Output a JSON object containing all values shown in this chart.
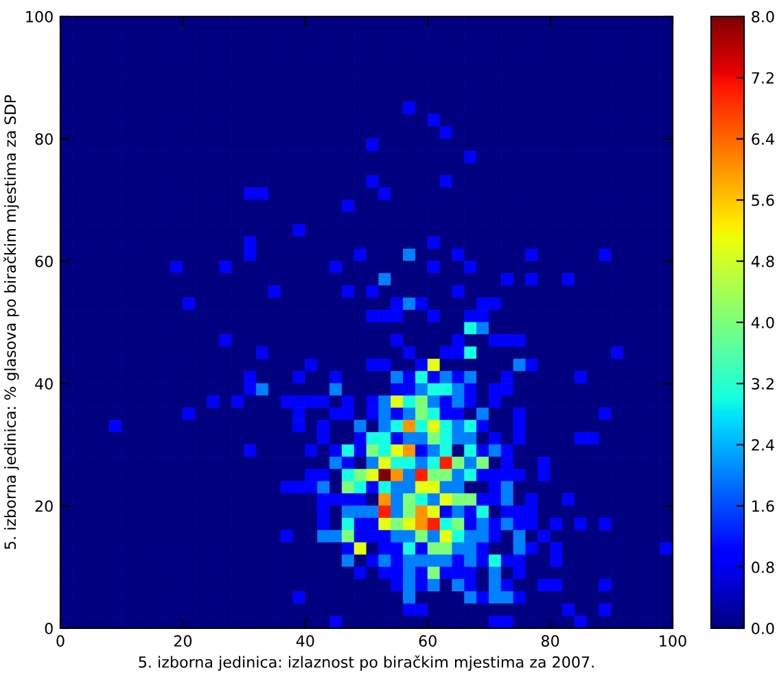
{
  "chart_data": {
    "type": "heatmap",
    "xlabel": "5. izborna jedinica: izlaznost po biračkim mjestima za 2007.",
    "ylabel": "5. izborna jedinica: % glasova po biračkim mjestima za SDP",
    "x": [
      1,
      3,
      5,
      7,
      9,
      11,
      13,
      15,
      17,
      19,
      21,
      23,
      25,
      27,
      29,
      31,
      33,
      35,
      37,
      39,
      41,
      43,
      45,
      47,
      49,
      51,
      53,
      55,
      57,
      59,
      61,
      63,
      65,
      67,
      69,
      71,
      73,
      75,
      77,
      79,
      81,
      83,
      85,
      87,
      89,
      91,
      93,
      95,
      97,
      99
    ],
    "y": [
      99,
      97,
      95,
      93,
      91,
      89,
      87,
      85,
      83,
      81,
      79,
      77,
      75,
      73,
      71,
      69,
      67,
      65,
      63,
      61,
      59,
      57,
      55,
      53,
      51,
      49,
      47,
      45,
      43,
      41,
      39,
      37,
      35,
      33,
      31,
      29,
      27,
      25,
      23,
      21,
      19,
      17,
      15,
      13,
      11,
      9,
      7,
      5,
      3,
      1
    ],
    "cells": [
      [
        0,
        0,
        0,
        0,
        0,
        0,
        0,
        0,
        0,
        0,
        0,
        0,
        0,
        0,
        0,
        0,
        0,
        0,
        0,
        0,
        0,
        0,
        0,
        0,
        0,
        0,
        0,
        0,
        0,
        0,
        0,
        0,
        0,
        0,
        0,
        0,
        0,
        0,
        0,
        0,
        0,
        0,
        0,
        0,
        0,
        0,
        0,
        0,
        0,
        0
      ],
      [
        0,
        0,
        0,
        0,
        0,
        0,
        0,
        0,
        0,
        0,
        0,
        0,
        0,
        0,
        0,
        0,
        0,
        0,
        0,
        0,
        0,
        0,
        0,
        0,
        0,
        0,
        0,
        0,
        0,
        0,
        0,
        0,
        0,
        0,
        0,
        0,
        0,
        0,
        0,
        0,
        0,
        0,
        0,
        0,
        0,
        0,
        0,
        0,
        0,
        0
      ],
      [
        0,
        0,
        0,
        0,
        0,
        0,
        0,
        0,
        0,
        0,
        0,
        0,
        0,
        0,
        0,
        0,
        0,
        0,
        0,
        0,
        0,
        0,
        0,
        0,
        0,
        0,
        0,
        0,
        0,
        0,
        0,
        0,
        0,
        0,
        0,
        0,
        0,
        0,
        0,
        0,
        0,
        0,
        0,
        0,
        0,
        0,
        0,
        0,
        0,
        0
      ],
      [
        0,
        0,
        0,
        0,
        0,
        0,
        0,
        0,
        0,
        0,
        0,
        0,
        0,
        0,
        0,
        0,
        0,
        0,
        0,
        0,
        0,
        0,
        0,
        0,
        0,
        0,
        0,
        0,
        0,
        0,
        0,
        0,
        0,
        0,
        0,
        0,
        0,
        0,
        0,
        0,
        0,
        0,
        0,
        0,
        0,
        0,
        0,
        0,
        0,
        0
      ],
      [
        0,
        0,
        0,
        0,
        0,
        0,
        0,
        0,
        0,
        0,
        0,
        0,
        0,
        0,
        0,
        0,
        0,
        0,
        0,
        0,
        0,
        0,
        0,
        0,
        0,
        0,
        0,
        0,
        0,
        0,
        0,
        0,
        0,
        0,
        0,
        0,
        0,
        0,
        0,
        0,
        0,
        0,
        0,
        0,
        0,
        0,
        0,
        0,
        0,
        0
      ],
      [
        0,
        0,
        0,
        0,
        0,
        0,
        0,
        0,
        0,
        0,
        0,
        0,
        0,
        0,
        0,
        0,
        0,
        0,
        0,
        0,
        0,
        0,
        0,
        0,
        0,
        0,
        0,
        0,
        0,
        0,
        0,
        0,
        0,
        0,
        0,
        0,
        0,
        0,
        0,
        0,
        0,
        0,
        0,
        0,
        0,
        0,
        0,
        0,
        0,
        0
      ],
      [
        0,
        0,
        0,
        0,
        0,
        0,
        0,
        0,
        0,
        0,
        0,
        0,
        0,
        0,
        0,
        0,
        0,
        0,
        0,
        0,
        0,
        0,
        0,
        0,
        0,
        0,
        0,
        0,
        0,
        0,
        0,
        0,
        0,
        0,
        0,
        0,
        0,
        0,
        0,
        0,
        0,
        0,
        0,
        0,
        0,
        0,
        0,
        0,
        0,
        0
      ],
      [
        0,
        0,
        0,
        0,
        0,
        0,
        0,
        0,
        0,
        0,
        0,
        0,
        0,
        0,
        0,
        0,
        0,
        0,
        0,
        0,
        0,
        0,
        0,
        0,
        0,
        0,
        0,
        0,
        1,
        0,
        0,
        0,
        0,
        0,
        0,
        0,
        0,
        0,
        0,
        0,
        0,
        0,
        0,
        0,
        0,
        0,
        0,
        0,
        0,
        0
      ],
      [
        0,
        0,
        0,
        0,
        0,
        0,
        0,
        0,
        0,
        0,
        0,
        0,
        0,
        0,
        0,
        0,
        0,
        0,
        0,
        0,
        0,
        0,
        0,
        0,
        0,
        0,
        0,
        0,
        0,
        0,
        1,
        0,
        0,
        0,
        0,
        0,
        0,
        0,
        0,
        0,
        0,
        0,
        0,
        0,
        0,
        0,
        0,
        0,
        0,
        0
      ],
      [
        0,
        0,
        0,
        0,
        0,
        0,
        0,
        0,
        0,
        0,
        0,
        0,
        0,
        0,
        0,
        0,
        0,
        0,
        0,
        0,
        0,
        0,
        0,
        0,
        0,
        0,
        0,
        0,
        0,
        0,
        0,
        1,
        0,
        0,
        0,
        0,
        0,
        0,
        0,
        0,
        0,
        0,
        0,
        0,
        0,
        0,
        0,
        0,
        0,
        0
      ],
      [
        0,
        0,
        0,
        0,
        0,
        0,
        0,
        0,
        0,
        0,
        0,
        0,
        0,
        0,
        0,
        0,
        0,
        0,
        0,
        0,
        0,
        0,
        0,
        0,
        0,
        1,
        0,
        0,
        0,
        0,
        0,
        0,
        0,
        0,
        0,
        0,
        0,
        0,
        0,
        0,
        0,
        0,
        0,
        0,
        0,
        0,
        0,
        0,
        0,
        0
      ],
      [
        0,
        0,
        0,
        0,
        0,
        0,
        0,
        0,
        0,
        0,
        0,
        0,
        0,
        0,
        0,
        0,
        0,
        0,
        0,
        0,
        0,
        0,
        0,
        0,
        0,
        0,
        0,
        0,
        0,
        0,
        0,
        0,
        0,
        1,
        0,
        0,
        0,
        0,
        0,
        0,
        0,
        0,
        0,
        0,
        0,
        0,
        0,
        0,
        0,
        0
      ],
      [
        0,
        0,
        0,
        0,
        0,
        0,
        0,
        0,
        0,
        0,
        0,
        0,
        0,
        0,
        0,
        0,
        0,
        0,
        0,
        0,
        0,
        0,
        0,
        0,
        0,
        0,
        0,
        0,
        0,
        0,
        0,
        0,
        0,
        0,
        0,
        0,
        0,
        0,
        0,
        0,
        0,
        0,
        0,
        0,
        0,
        0,
        0,
        0,
        0,
        0
      ],
      [
        0,
        0,
        0,
        0,
        0,
        0,
        0,
        0,
        0,
        0,
        0,
        0,
        0,
        0,
        0,
        0,
        0,
        0,
        0,
        0,
        0,
        0,
        0,
        0,
        0,
        1,
        0,
        0,
        0,
        0,
        0,
        1,
        0,
        0,
        0,
        0,
        0,
        0,
        0,
        0,
        0,
        0,
        0,
        0,
        0,
        0,
        0,
        0,
        0,
        0
      ],
      [
        0,
        0,
        0,
        0,
        0,
        0,
        0,
        0,
        0,
        0,
        0,
        0,
        0,
        0,
        0,
        1,
        1,
        0,
        0,
        0,
        0,
        0,
        0,
        0,
        0,
        0,
        1,
        0,
        0,
        0,
        0,
        0,
        0,
        0,
        0,
        0,
        0,
        0,
        0,
        0,
        0,
        0,
        0,
        0,
        0,
        0,
        0,
        0,
        0,
        0
      ],
      [
        0,
        0,
        0,
        0,
        0,
        0,
        0,
        0,
        0,
        0,
        0,
        0,
        0,
        0,
        0,
        0,
        0,
        0,
        0,
        0,
        0,
        0,
        0,
        1,
        0,
        0,
        0,
        0,
        0,
        0,
        0,
        0,
        0,
        0,
        0,
        0,
        0,
        0,
        0,
        0,
        0,
        0,
        0,
        0,
        0,
        0,
        0,
        0,
        0,
        0
      ],
      [
        0,
        0,
        0,
        0,
        0,
        0,
        0,
        0,
        0,
        0,
        0,
        0,
        0,
        0,
        0,
        0,
        0,
        0,
        0,
        0,
        0,
        0,
        0,
        0,
        0,
        0,
        0,
        0,
        0,
        0,
        0,
        0,
        0,
        0,
        0,
        0,
        0,
        0,
        0,
        0,
        0,
        0,
        0,
        0,
        0,
        0,
        0,
        0,
        0,
        0
      ],
      [
        0,
        0,
        0,
        0,
        0,
        0,
        0,
        0,
        0,
        0,
        0,
        0,
        0,
        0,
        0,
        0,
        0,
        0,
        0,
        1,
        0,
        0,
        0,
        0,
        0,
        0,
        0,
        0,
        0,
        0,
        0,
        0,
        0,
        0,
        0,
        0,
        0,
        0,
        0,
        0,
        0,
        0,
        0,
        0,
        0,
        0,
        0,
        0,
        0,
        0
      ],
      [
        0,
        0,
        0,
        0,
        0,
        0,
        0,
        0,
        0,
        0,
        0,
        0,
        0,
        0,
        0,
        1,
        0,
        0,
        0,
        0,
        0,
        0,
        0,
        0,
        0,
        0,
        0,
        0,
        0,
        0,
        1,
        0,
        0,
        0,
        0,
        0,
        0,
        0,
        0,
        0,
        0,
        0,
        0,
        0,
        0,
        0,
        0,
        0,
        0,
        0
      ],
      [
        0,
        0,
        0,
        0,
        0,
        0,
        0,
        0,
        0,
        0,
        0,
        0,
        0,
        0,
        0,
        1,
        0,
        0,
        0,
        0,
        0,
        0,
        0,
        0,
        1,
        0,
        0,
        0,
        2,
        0,
        0,
        0,
        1,
        0,
        0,
        0,
        0,
        0,
        1,
        0,
        0,
        0,
        0,
        0,
        1,
        0,
        0,
        0,
        0,
        0
      ],
      [
        0,
        0,
        0,
        0,
        0,
        0,
        0,
        0,
        0,
        1,
        0,
        0,
        0,
        1,
        0,
        0,
        0,
        0,
        0,
        0,
        0,
        0,
        1,
        0,
        0,
        0,
        0,
        0,
        0,
        0,
        1,
        0,
        0,
        1,
        0,
        0,
        0,
        0,
        0,
        0,
        0,
        0,
        0,
        0,
        0,
        0,
        0,
        0,
        0,
        0
      ],
      [
        0,
        0,
        0,
        0,
        0,
        0,
        0,
        0,
        0,
        0,
        0,
        0,
        0,
        0,
        0,
        0,
        0,
        0,
        0,
        0,
        0,
        0,
        0,
        0,
        0,
        0,
        2,
        0,
        0,
        0,
        0,
        0,
        0,
        0,
        0,
        0,
        1,
        0,
        1,
        0,
        0,
        1,
        0,
        0,
        0,
        0,
        0,
        0,
        0,
        0
      ],
      [
        0,
        0,
        0,
        0,
        0,
        0,
        0,
        0,
        0,
        0,
        0,
        0,
        0,
        0,
        0,
        0,
        0,
        1,
        0,
        0,
        0,
        0,
        0,
        1,
        0,
        1,
        0,
        0,
        0,
        0,
        0,
        0,
        1,
        0,
        0,
        0,
        0,
        0,
        0,
        0,
        0,
        0,
        0,
        0,
        0,
        0,
        0,
        0,
        0,
        0
      ],
      [
        0,
        0,
        0,
        0,
        0,
        0,
        0,
        0,
        0,
        0,
        1,
        0,
        0,
        0,
        0,
        0,
        0,
        0,
        0,
        0,
        0,
        0,
        0,
        0,
        0,
        0,
        0,
        1,
        2,
        1,
        0,
        0,
        0,
        0,
        1,
        1,
        0,
        0,
        0,
        0,
        0,
        0,
        0,
        0,
        0,
        0,
        0,
        0,
        0,
        0
      ],
      [
        0,
        0,
        0,
        0,
        0,
        0,
        0,
        0,
        0,
        0,
        0,
        0,
        0,
        0,
        0,
        0,
        0,
        0,
        0,
        0,
        0,
        0,
        0,
        0,
        0,
        1,
        1,
        1,
        0,
        0,
        1,
        0,
        0,
        1,
        1,
        0,
        0,
        0,
        0,
        0,
        0,
        0,
        0,
        0,
        0,
        0,
        0,
        0,
        0,
        0
      ],
      [
        0,
        0,
        0,
        0,
        0,
        0,
        0,
        0,
        0,
        0,
        0,
        0,
        0,
        0,
        0,
        0,
        0,
        0,
        0,
        0,
        0,
        0,
        0,
        0,
        0,
        0,
        0,
        0,
        0,
        0,
        0,
        0,
        0,
        3,
        2,
        0,
        0,
        0,
        0,
        0,
        0,
        0,
        0,
        0,
        0,
        0,
        0,
        0,
        0,
        0
      ],
      [
        0,
        0,
        0,
        0,
        0,
        0,
        0,
        0,
        0,
        0,
        0,
        0,
        0,
        1,
        0,
        0,
        0,
        0,
        0,
        0,
        0,
        0,
        0,
        0,
        0,
        0,
        0,
        1,
        0,
        0,
        0,
        0,
        1,
        0,
        0,
        1,
        1,
        1,
        0,
        0,
        0,
        0,
        0,
        0,
        0,
        0,
        0,
        0,
        0,
        0
      ],
      [
        0,
        0,
        0,
        0,
        0,
        0,
        0,
        0,
        0,
        0,
        0,
        0,
        0,
        0,
        0,
        0,
        1,
        0,
        0,
        0,
        0,
        0,
        0,
        0,
        0,
        0,
        0,
        0,
        1,
        0,
        0,
        1,
        1,
        3,
        0,
        0,
        0,
        0,
        0,
        0,
        0,
        0,
        0,
        0,
        0,
        1,
        0,
        0,
        0,
        0
      ],
      [
        0,
        0,
        0,
        0,
        0,
        0,
        0,
        0,
        0,
        0,
        0,
        0,
        0,
        0,
        0,
        0,
        0,
        0,
        0,
        0,
        1,
        0,
        0,
        0,
        0,
        1,
        1,
        0,
        0,
        1,
        5,
        0,
        0,
        0,
        0,
        0,
        0,
        2,
        1,
        0,
        0,
        0,
        0,
        0,
        0,
        0,
        0,
        0,
        0,
        0
      ],
      [
        0,
        0,
        0,
        0,
        0,
        0,
        0,
        0,
        0,
        0,
        0,
        0,
        0,
        0,
        0,
        1,
        0,
        0,
        0,
        1,
        0,
        0,
        1,
        0,
        0,
        0,
        0,
        2,
        1,
        3,
        1,
        2,
        1,
        2,
        0,
        0,
        1,
        0,
        0,
        0,
        0,
        0,
        1,
        0,
        0,
        0,
        0,
        0,
        0,
        0
      ],
      [
        0,
        0,
        0,
        0,
        0,
        0,
        0,
        0,
        0,
        0,
        0,
        0,
        0,
        0,
        0,
        1,
        2,
        0,
        0,
        0,
        0,
        0,
        2,
        0,
        0,
        0,
        0,
        1,
        1,
        2,
        3,
        3,
        2,
        1,
        0,
        1,
        1,
        0,
        0,
        0,
        0,
        0,
        0,
        0,
        0,
        0,
        0,
        0,
        0,
        0
      ],
      [
        0,
        0,
        0,
        0,
        0,
        0,
        0,
        0,
        0,
        0,
        0,
        0,
        1,
        0,
        1,
        0,
        0,
        0,
        1,
        1,
        1,
        1,
        0,
        1,
        0,
        1,
        2,
        5,
        3,
        4,
        2,
        1,
        2,
        1,
        0,
        1,
        0,
        0,
        0,
        0,
        0,
        0,
        0,
        0,
        0,
        0,
        0,
        0,
        0,
        0
      ],
      [
        0,
        0,
        0,
        0,
        0,
        0,
        0,
        0,
        0,
        0,
        1,
        0,
        0,
        0,
        0,
        0,
        0,
        0,
        0,
        1,
        0,
        0,
        1,
        1,
        0,
        1,
        2,
        1,
        2,
        4,
        3,
        1,
        1,
        0,
        2,
        0,
        0,
        1,
        0,
        0,
        0,
        0,
        0,
        0,
        1,
        0,
        0,
        0,
        0,
        0
      ],
      [
        0,
        0,
        0,
        0,
        1,
        0,
        0,
        0,
        0,
        0,
        0,
        0,
        0,
        0,
        0,
        0,
        0,
        0,
        0,
        1,
        0,
        1,
        0,
        0,
        2,
        0,
        2,
        3,
        6,
        3,
        5,
        3,
        2,
        3,
        1,
        0,
        0,
        1,
        0,
        0,
        0,
        0,
        0,
        0,
        0,
        0,
        0,
        0,
        0,
        0
      ],
      [
        0,
        0,
        0,
        0,
        0,
        0,
        0,
        0,
        0,
        0,
        0,
        0,
        0,
        0,
        0,
        0,
        0,
        0,
        0,
        0,
        0,
        1,
        0,
        0,
        1,
        3,
        3,
        1,
        2,
        2,
        4,
        3,
        2,
        2,
        0,
        1,
        0,
        1,
        0,
        0,
        0,
        0,
        1,
        1,
        0,
        0,
        0,
        0,
        0,
        0
      ],
      [
        0,
        0,
        0,
        0,
        0,
        0,
        0,
        0,
        0,
        0,
        0,
        0,
        0,
        0,
        0,
        1,
        0,
        0,
        0,
        0,
        1,
        0,
        1,
        3,
        1,
        4,
        3,
        5,
        6,
        1,
        2,
        3,
        0,
        3,
        1,
        2,
        1,
        0,
        0,
        0,
        0,
        0,
        0,
        0,
        0,
        0,
        0,
        0,
        0,
        0
      ],
      [
        0,
        0,
        0,
        0,
        0,
        0,
        0,
        0,
        0,
        0,
        0,
        0,
        0,
        0,
        0,
        0,
        0,
        0,
        0,
        0,
        0,
        0,
        2,
        1,
        0,
        2,
        5,
        3,
        3,
        2,
        3,
        7,
        4,
        2,
        4,
        0,
        1,
        0,
        0,
        1,
        0,
        0,
        0,
        0,
        0,
        0,
        0,
        0,
        0,
        0
      ],
      [
        0,
        0,
        0,
        0,
        0,
        0,
        0,
        0,
        0,
        0,
        0,
        0,
        0,
        0,
        0,
        0,
        0,
        0,
        0,
        0,
        1,
        1,
        0,
        3,
        4,
        5,
        8,
        6,
        2,
        7,
        4,
        4,
        2,
        3,
        1,
        1,
        1,
        1,
        0,
        1,
        0,
        0,
        0,
        0,
        0,
        0,
        0,
        0,
        0,
        0
      ],
      [
        0,
        0,
        0,
        0,
        0,
        0,
        0,
        0,
        0,
        0,
        0,
        0,
        0,
        0,
        0,
        0,
        0,
        0,
        1,
        1,
        1,
        2,
        0,
        4,
        3,
        1,
        3,
        2,
        2,
        5,
        5,
        2,
        2,
        0,
        0,
        1,
        2,
        0,
        0,
        0,
        0,
        0,
        0,
        0,
        0,
        0,
        0,
        0,
        0,
        0
      ],
      [
        0,
        0,
        0,
        0,
        0,
        0,
        0,
        0,
        0,
        0,
        0,
        0,
        0,
        0,
        0,
        0,
        0,
        0,
        0,
        0,
        0,
        1,
        1,
        1,
        1,
        0,
        6,
        2,
        4,
        3,
        2,
        5,
        4,
        4,
        1,
        1,
        2,
        0,
        1,
        0,
        0,
        1,
        0,
        0,
        0,
        0,
        0,
        0,
        0,
        0
      ],
      [
        0,
        0,
        0,
        0,
        0,
        0,
        0,
        0,
        0,
        0,
        0,
        0,
        0,
        0,
        0,
        0,
        0,
        0,
        0,
        0,
        0,
        1,
        0,
        2,
        2,
        2,
        7,
        2,
        4,
        6,
        5,
        1,
        2,
        1,
        3,
        0,
        1,
        1,
        1,
        0,
        0,
        0,
        0,
        0,
        0,
        0,
        0,
        0,
        0,
        0
      ],
      [
        0,
        0,
        0,
        0,
        0,
        0,
        0,
        0,
        0,
        0,
        0,
        0,
        0,
        0,
        0,
        0,
        0,
        0,
        0,
        0,
        0,
        1,
        0,
        3,
        1,
        1,
        5,
        4,
        5,
        6,
        7,
        3,
        4,
        1,
        2,
        1,
        2,
        1,
        1,
        0,
        1,
        0,
        1,
        0,
        1,
        0,
        0,
        0,
        0,
        0
      ],
      [
        0,
        0,
        0,
        0,
        0,
        0,
        0,
        0,
        0,
        0,
        0,
        0,
        0,
        0,
        0,
        0,
        0,
        0,
        1,
        0,
        0,
        2,
        2,
        4,
        1,
        1,
        1,
        2,
        2,
        4,
        2,
        5,
        3,
        2,
        2,
        1,
        0,
        2,
        0,
        1,
        0,
        0,
        0,
        0,
        0,
        0,
        0,
        0,
        0,
        0
      ],
      [
        0,
        0,
        0,
        0,
        0,
        0,
        0,
        0,
        0,
        0,
        0,
        0,
        0,
        0,
        0,
        0,
        0,
        0,
        0,
        0,
        0,
        0,
        0,
        1,
        5,
        0,
        1,
        1,
        3,
        1,
        4,
        4,
        2,
        2,
        1,
        0,
        0,
        2,
        1,
        0,
        1,
        0,
        0,
        0,
        0,
        0,
        0,
        0,
        0,
        1
      ],
      [
        0,
        0,
        0,
        0,
        0,
        0,
        0,
        0,
        0,
        0,
        0,
        0,
        0,
        0,
        0,
        0,
        0,
        0,
        0,
        0,
        0,
        0,
        0,
        2,
        0,
        1,
        2,
        1,
        2,
        2,
        2,
        2,
        1,
        2,
        1,
        3,
        1,
        1,
        0,
        0,
        1,
        0,
        0,
        0,
        0,
        0,
        0,
        0,
        0,
        0
      ],
      [
        0,
        0,
        0,
        0,
        0,
        0,
        0,
        0,
        0,
        0,
        0,
        0,
        0,
        0,
        0,
        0,
        0,
        0,
        0,
        0,
        0,
        0,
        0,
        0,
        1,
        0,
        1,
        1,
        2,
        1,
        4,
        1,
        1,
        1,
        0,
        2,
        0,
        1,
        0,
        0,
        0,
        0,
        0,
        0,
        0,
        0,
        0,
        0,
        0,
        0
      ],
      [
        0,
        0,
        0,
        0,
        0,
        0,
        0,
        0,
        0,
        0,
        0,
        0,
        0,
        0,
        0,
        0,
        0,
        0,
        0,
        0,
        0,
        0,
        0,
        0,
        0,
        0,
        0,
        1,
        2,
        1,
        2,
        0,
        2,
        1,
        0,
        2,
        1,
        0,
        0,
        1,
        1,
        0,
        0,
        0,
        1,
        0,
        0,
        0,
        0,
        0
      ],
      [
        0,
        0,
        0,
        0,
        0,
        0,
        0,
        0,
        0,
        0,
        0,
        0,
        0,
        0,
        0,
        0,
        0,
        0,
        0,
        1,
        0,
        0,
        0,
        0,
        0,
        0,
        0,
        0,
        2,
        0,
        0,
        0,
        0,
        2,
        1,
        2,
        2,
        1,
        0,
        0,
        0,
        0,
        0,
        0,
        0,
        0,
        0,
        0,
        0,
        0
      ],
      [
        0,
        0,
        0,
        0,
        0,
        0,
        0,
        0,
        0,
        0,
        0,
        0,
        0,
        0,
        0,
        0,
        0,
        0,
        0,
        0,
        0,
        0,
        0,
        0,
        0,
        0,
        0,
        0,
        1,
        1,
        0,
        0,
        0,
        0,
        0,
        0,
        0,
        0,
        0,
        0,
        0,
        1,
        0,
        0,
        1,
        0,
        0,
        0,
        0,
        0
      ],
      [
        0,
        0,
        0,
        0,
        0,
        0,
        0,
        0,
        0,
        0,
        0,
        0,
        0,
        0,
        0,
        0,
        0,
        0,
        0,
        0,
        0,
        0,
        1,
        0,
        0,
        0,
        0,
        0,
        0,
        0,
        0,
        0,
        0,
        0,
        0,
        1,
        1,
        0,
        0,
        0,
        0,
        0,
        1,
        0,
        0,
        0,
        0,
        0,
        0,
        0
      ]
    ],
    "xlim": [
      0,
      100
    ],
    "ylim": [
      0,
      100
    ],
    "xticks": [
      0,
      20,
      40,
      60,
      80,
      100
    ],
    "yticks": [
      0,
      20,
      40,
      60,
      80,
      100
    ],
    "clim": [
      0,
      8
    ],
    "cticks": [
      {
        "value": 0,
        "label": "0.0"
      },
      0.8,
      1.6,
      2.4,
      3.2,
      {
        "value": 4,
        "label": "4.0"
      },
      4.8,
      5.6,
      6.4,
      7.2,
      {
        "value": 8,
        "label": "8.0"
      }
    ]
  }
}
